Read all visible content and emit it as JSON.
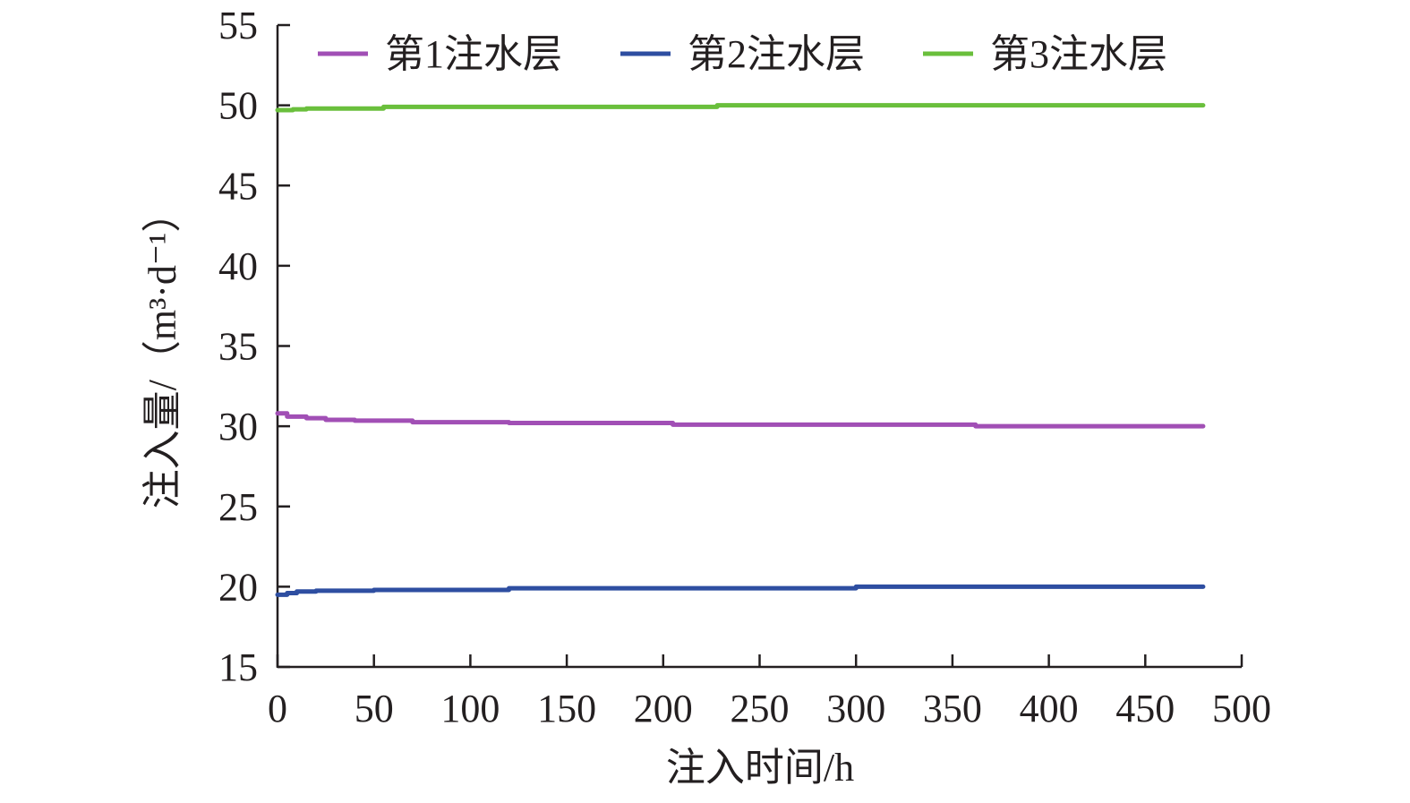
{
  "chart_data": {
    "type": "line",
    "xlabel": "注入时间/h",
    "ylabel": "注入量/（m³·d⁻¹）",
    "xlim": [
      0,
      500
    ],
    "ylim": [
      15,
      55
    ],
    "xticks": [
      "0",
      "50",
      "100",
      "150",
      "200",
      "250",
      "300",
      "350",
      "400",
      "450",
      "500"
    ],
    "yticks": [
      "15",
      "20",
      "25",
      "30",
      "35",
      "40",
      "45",
      "50",
      "55"
    ],
    "grid": false,
    "legend_position": "top",
    "series": [
      {
        "name": "第1注水层",
        "color": "#a14fb5",
        "x": [
          0,
          5,
          15,
          25,
          40,
          70,
          120,
          205,
          362,
          480
        ],
        "y": [
          30.8,
          30.6,
          30.5,
          30.4,
          30.35,
          30.25,
          30.2,
          30.1,
          30.0,
          30.0
        ]
      },
      {
        "name": "第2注水层",
        "color": "#2e4ea1",
        "x": [
          0,
          5,
          10,
          20,
          50,
          120,
          300,
          480
        ],
        "y": [
          19.5,
          19.6,
          19.7,
          19.75,
          19.8,
          19.9,
          20.0,
          20.0
        ]
      },
      {
        "name": "第3注水层",
        "color": "#6abf3c",
        "x": [
          0,
          8,
          15,
          55,
          228,
          480
        ],
        "y": [
          49.7,
          49.75,
          49.8,
          49.9,
          50.0,
          50.0
        ]
      }
    ]
  }
}
